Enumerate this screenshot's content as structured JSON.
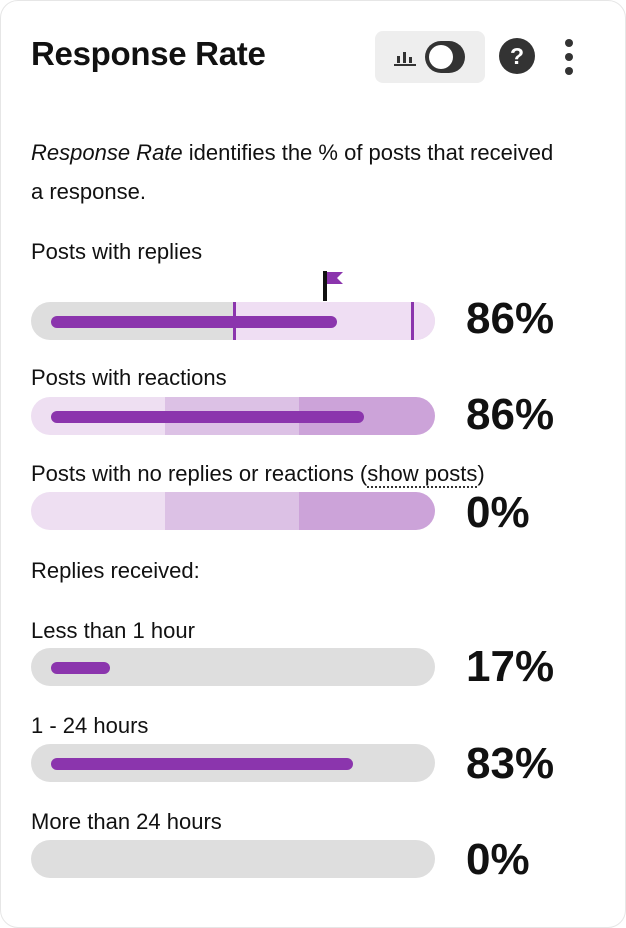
{
  "header": {
    "title": "Response Rate",
    "toggle_icon": "bar-chart-icon",
    "help_label": "?",
    "menu_icon": "kebab-menu-icon"
  },
  "description": {
    "term": "Response Rate",
    "rest": " identifies the % of posts that received a response."
  },
  "colors": {
    "fill": "#8b35ad",
    "track": "#dedede",
    "band_light": "#eedff2",
    "band_mid": "#dcc1e5",
    "band_dark": "#cca3d9",
    "target_zone": "#efdef3"
  },
  "metrics": {
    "replies": {
      "label": "Posts with replies",
      "value": "86%",
      "fraction": 0.86,
      "flag_icon": "target-flag-icon"
    },
    "reactions": {
      "label": "Posts with reactions",
      "value": "86%",
      "fraction": 0.86
    },
    "none": {
      "label_before": "Posts with no replies or reactions (",
      "link": "show posts",
      "label_after": ")",
      "value": "0%",
      "fraction": 0
    }
  },
  "replies_received": {
    "heading": "Replies received:",
    "items": [
      {
        "label": "Less than 1 hour",
        "value": "17%",
        "fraction": 0.17
      },
      {
        "label": "1 - 24 hours",
        "value": "83%",
        "fraction": 0.83
      },
      {
        "label": "More than 24 hours",
        "value": "0%",
        "fraction": 0
      }
    ]
  }
}
